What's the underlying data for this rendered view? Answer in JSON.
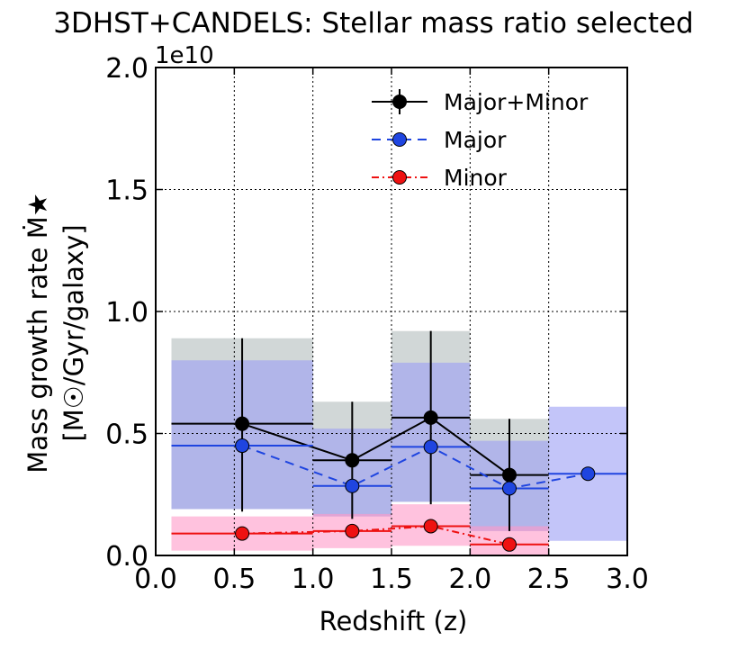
{
  "chart_data": {
    "type": "line",
    "title": "3DHST+CANDELS: Stellar mass ratio selected",
    "xlabel": "Redshift (z)",
    "ylabel_line1": "Mass growth rate Ṁ★",
    "ylabel_line2": "[M☉/Gyr/galaxy]",
    "y_multiplier_label": "1e10",
    "xlim": [
      0.0,
      3.0
    ],
    "ylim": [
      0.0,
      2.0
    ],
    "x_tick_labels": [
      "0.0",
      "0.5",
      "1.0",
      "1.5",
      "2.0",
      "2.5",
      "3.0"
    ],
    "y_tick_labels": [
      "0.0",
      "0.5",
      "1.0",
      "1.5",
      "2.0"
    ],
    "grid": true,
    "legend_position": "top-right",
    "series": [
      {
        "name": "Major+Minor",
        "color": "#000000",
        "line_style": "solid",
        "x": [
          0.55,
          1.25,
          1.75,
          2.25
        ],
        "y": [
          0.54,
          0.39,
          0.565,
          0.33
        ],
        "xerr_lo": [
          0.1,
          1.0,
          1.5,
          2.0
        ],
        "xerr_hi": [
          1.0,
          1.5,
          2.0,
          2.5
        ],
        "yerr_lo": [
          0.18,
          0.15,
          0.21,
          0.1
        ],
        "yerr_hi": [
          0.89,
          0.63,
          0.92,
          0.56
        ],
        "band_lo": [
          0.19,
          0.16,
          0.22,
          0.1
        ],
        "band_hi": [
          0.89,
          0.63,
          0.92,
          0.56
        ],
        "band_color": "#b3bcbc"
      },
      {
        "name": "Major",
        "color": "#1f45e0",
        "line_style": "dashed",
        "x": [
          0.55,
          1.25,
          1.75,
          2.25,
          2.75
        ],
        "y": [
          0.45,
          0.285,
          0.445,
          0.275,
          0.335
        ],
        "xerr_lo": [
          0.1,
          1.0,
          1.5,
          2.0,
          2.5
        ],
        "xerr_hi": [
          1.0,
          1.5,
          2.0,
          2.5,
          3.0
        ],
        "band_lo": [
          0.19,
          0.16,
          0.22,
          0.1,
          0.06
        ],
        "band_hi": [
          0.8,
          0.52,
          0.79,
          0.47,
          0.61
        ],
        "band_color": "#9b9ff5"
      },
      {
        "name": "Minor",
        "color": "#ee1111",
        "line_style": "dashdot",
        "x": [
          0.55,
          1.25,
          1.75,
          2.25
        ],
        "y": [
          0.09,
          0.1,
          0.12,
          0.045
        ],
        "xerr_lo": [
          0.1,
          1.0,
          1.5,
          2.0
        ],
        "xerr_hi": [
          1.0,
          1.5,
          2.0,
          2.5
        ],
        "band_lo": [
          0.02,
          0.03,
          0.04,
          0.0
        ],
        "band_hi": [
          0.16,
          0.17,
          0.21,
          0.12
        ],
        "band_color": "#ff9ac8"
      }
    ]
  }
}
